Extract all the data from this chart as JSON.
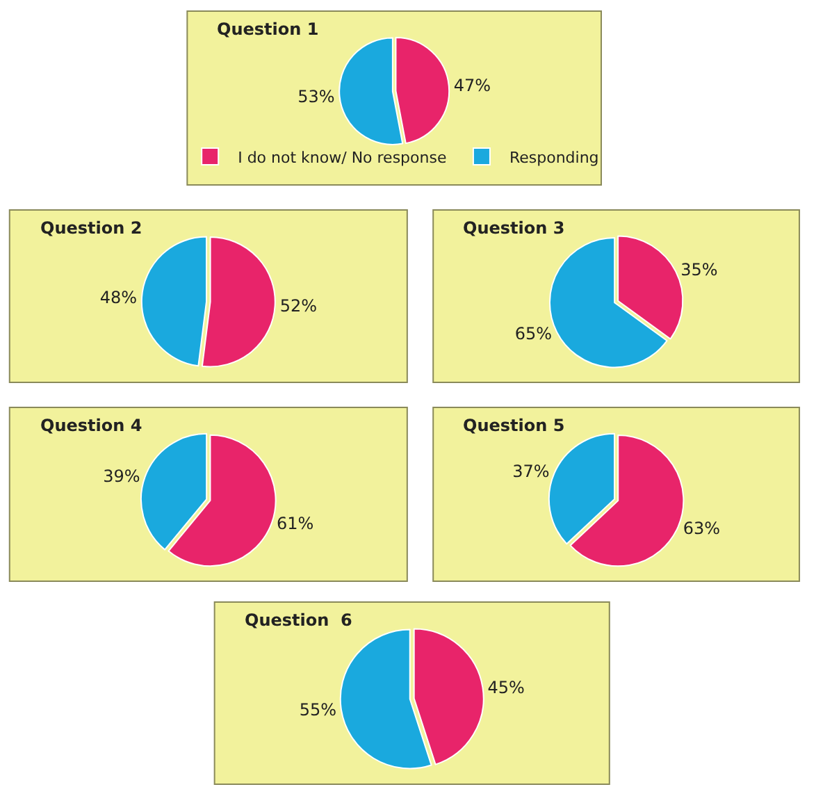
{
  "chart_data": [
    {
      "type": "pie",
      "title": "Question 1",
      "categories": [
        "I do not know/ No response",
        "Responding"
      ],
      "values": [
        47,
        53
      ],
      "value_labels": [
        "47%",
        "53%"
      ],
      "colors": [
        "#e8246a",
        "#1aa9de"
      ],
      "legend": "bottom"
    },
    {
      "type": "pie",
      "title": "Question 2",
      "categories": [
        null,
        null
      ],
      "values": [
        52,
        48
      ],
      "value_labels": [
        "52%",
        "48%"
      ],
      "colors": [
        "#e8246a",
        "#1aa9de"
      ]
    },
    {
      "type": "pie",
      "title": "Question 3",
      "categories": [
        null,
        null
      ],
      "values": [
        35,
        65
      ],
      "value_labels": [
        "35%",
        "65%"
      ],
      "colors": [
        "#e8246a",
        "#1aa9de"
      ]
    },
    {
      "type": "pie",
      "title": "Question 4",
      "categories": [
        null,
        null
      ],
      "values": [
        61,
        39
      ],
      "value_labels": [
        "61%",
        "39%"
      ],
      "colors": [
        "#e8246a",
        "#1aa9de"
      ]
    },
    {
      "type": "pie",
      "title": "Question 5",
      "categories": [
        null,
        null
      ],
      "values": [
        63,
        37
      ],
      "value_labels": [
        "63%",
        "37%"
      ],
      "colors": [
        "#e8246a",
        "#1aa9de"
      ]
    },
    {
      "type": "pie",
      "title": "Question  6",
      "categories": [
        null,
        null
      ],
      "values": [
        45,
        55
      ],
      "value_labels": [
        "45%",
        "55%"
      ],
      "colors": [
        "#e8246a",
        "#1aa9de"
      ]
    }
  ]
}
